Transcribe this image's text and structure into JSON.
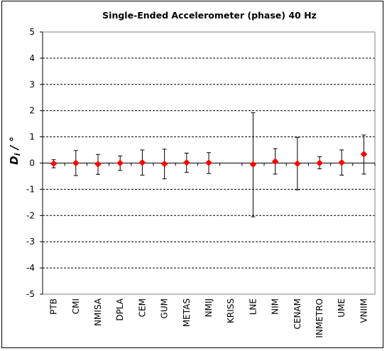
{
  "chart_data": {
    "type": "scatter",
    "title": "Single-Ended  Accelerometer  (phase)   40 Hz",
    "ylabel_main": "D",
    "ylabel_sub": "i",
    "ylabel_unit": " / °",
    "xlabel": "",
    "ylim": [
      -5,
      5
    ],
    "yticks": [
      5,
      4,
      3,
      2,
      1,
      0,
      -1,
      -2,
      -3,
      -4,
      -5
    ],
    "grid": true,
    "legend": "none",
    "marker_color": "#ff0000",
    "categories": [
      "PTB",
      "CMI",
      "NMISA",
      "DPLA",
      "CEM",
      "GUM",
      "METAS",
      "NMIJ",
      "KRISS",
      "LNE",
      "NIM",
      "CENAM",
      "INMETRO",
      "UME",
      "VNIIM"
    ],
    "series": [
      {
        "values": [
          -0.02,
          0.0,
          -0.04,
          0.0,
          0.02,
          -0.03,
          0.02,
          0.01,
          null,
          -0.05,
          0.06,
          -0.02,
          0.0,
          0.02,
          0.34
        ],
        "error_low": [
          -0.18,
          -0.48,
          -0.43,
          -0.28,
          -0.46,
          -0.6,
          -0.35,
          -0.4,
          null,
          -2.05,
          -0.42,
          -1.02,
          -0.22,
          -0.46,
          -0.42
        ],
        "error_high": [
          0.13,
          0.48,
          0.33,
          0.27,
          0.5,
          0.53,
          0.38,
          0.4,
          null,
          1.92,
          0.55,
          0.98,
          0.24,
          0.5,
          1.07
        ]
      }
    ]
  }
}
